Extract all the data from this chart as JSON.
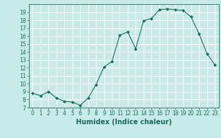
{
  "x": [
    0,
    1,
    2,
    3,
    4,
    5,
    6,
    7,
    8,
    9,
    10,
    11,
    12,
    13,
    14,
    15,
    16,
    17,
    18,
    19,
    20,
    21,
    22,
    23
  ],
  "y": [
    8.8,
    8.5,
    9.0,
    8.2,
    7.8,
    7.7,
    7.3,
    8.2,
    9.9,
    12.1,
    12.8,
    16.1,
    16.5,
    14.4,
    17.9,
    18.2,
    19.3,
    19.4,
    19.3,
    19.2,
    18.4,
    16.3,
    13.8,
    12.4
  ],
  "line_color": "#1a6b5a",
  "marker_color": "#1a6b5a",
  "bg_color": "#c8eae8",
  "grid_color": "#ffffff",
  "xlabel": "Humidex (Indice chaleur)",
  "ylim": [
    7,
    20
  ],
  "xlim": [
    -0.5,
    23.5
  ],
  "yticks": [
    7,
    8,
    9,
    10,
    11,
    12,
    13,
    14,
    15,
    16,
    17,
    18,
    19
  ],
  "xticks": [
    0,
    1,
    2,
    3,
    4,
    5,
    6,
    7,
    8,
    9,
    10,
    11,
    12,
    13,
    14,
    15,
    16,
    17,
    18,
    19,
    20,
    21,
    22,
    23
  ],
  "tick_label_fontsize": 5.5,
  "xlabel_fontsize": 7,
  "label_color": "#1a6b5a"
}
